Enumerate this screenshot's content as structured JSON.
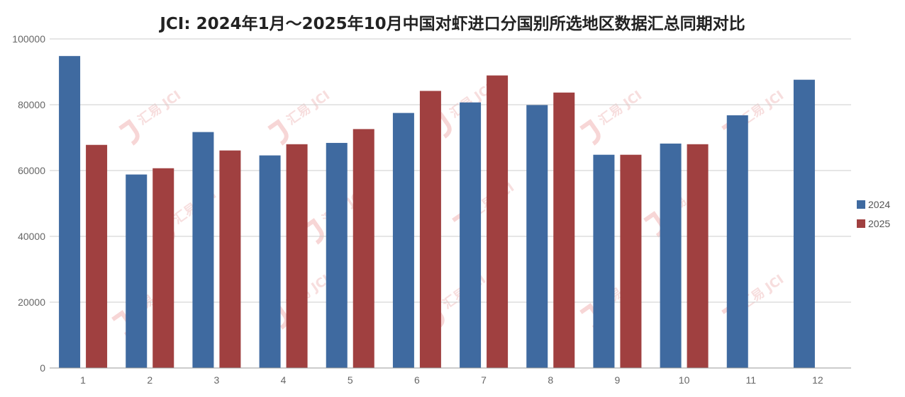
{
  "chart_data": {
    "type": "bar",
    "title": "JCI: 2024年1月～2025年10月中国对虾进口分国别所选地区数据汇总同期对比",
    "xlabel": "",
    "ylabel": "",
    "categories": [
      "1",
      "2",
      "3",
      "4",
      "5",
      "6",
      "7",
      "8",
      "9",
      "10",
      "11",
      "12"
    ],
    "series": [
      {
        "name": "2024",
        "color": "#3f6aa0",
        "values": [
          94800,
          58800,
          71700,
          64600,
          68400,
          77500,
          80700,
          79900,
          64800,
          68200,
          76800,
          87600
        ]
      },
      {
        "name": "2025",
        "color": "#a04040",
        "values": [
          67800,
          60700,
          66100,
          68000,
          72600,
          84200,
          88900,
          83700,
          64800,
          68000,
          null,
          null
        ]
      }
    ],
    "ylim": [
      0,
      100000
    ],
    "yticks": [
      "0",
      "20000",
      "40000",
      "60000",
      "80000",
      "100000"
    ],
    "grid": true,
    "legend_position": "right"
  },
  "watermark": {
    "text": "汇易 JCI",
    "color": "#e88a8a"
  }
}
